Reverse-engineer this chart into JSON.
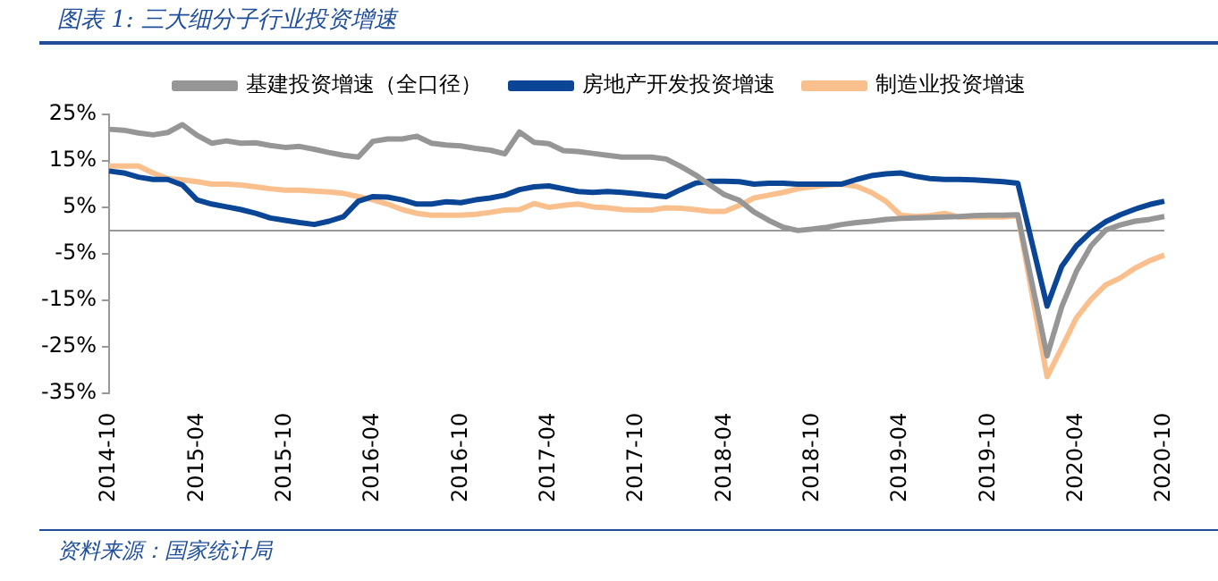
{
  "chart_data": {
    "type": "line",
    "title": "图表 1:  三大细分子行业投资增速",
    "annotations": [
      "资料来源：国家统计局"
    ],
    "categories": [
      "2014-10",
      null,
      null,
      null,
      null,
      null,
      "2015-04",
      null,
      null,
      null,
      null,
      null,
      "2015-10",
      null,
      null,
      null,
      null,
      null,
      "2016-04",
      null,
      null,
      null,
      null,
      null,
      "2016-10",
      null,
      null,
      null,
      null,
      null,
      "2017-04",
      null,
      null,
      null,
      null,
      null,
      "2017-10",
      null,
      null,
      null,
      null,
      null,
      "2018-04",
      null,
      null,
      null,
      null,
      null,
      "2018-10",
      null,
      null,
      null,
      null,
      null,
      "2019-04",
      null,
      null,
      null,
      null,
      null,
      "2019-10",
      null,
      null,
      null,
      null,
      null,
      "2020-04",
      null,
      null,
      null,
      null,
      null,
      "2020-10"
    ],
    "series": [
      {
        "name": "基建投资增速（全口径）",
        "color": "#969696",
        "values": [
          21.8,
          21.6,
          21.0,
          20.6,
          21.1,
          22.8,
          20.5,
          18.8,
          19.3,
          18.8,
          18.9,
          18.3,
          17.9,
          18.1,
          17.5,
          16.8,
          16.2,
          15.8,
          19.2,
          19.7,
          19.7,
          20.3,
          18.8,
          18.4,
          18.2,
          17.7,
          17.3,
          16.5,
          21.2,
          19.0,
          18.7,
          17.2,
          17.0,
          16.6,
          16.2,
          15.8,
          15.8,
          15.8,
          15.4,
          13.8,
          12.0,
          9.8,
          7.7,
          6.5,
          4.0,
          2.2,
          0.7,
          0.0,
          0.3,
          0.7,
          1.3,
          1.7,
          2.0,
          2.4,
          2.6,
          2.7,
          2.8,
          2.9,
          3.0,
          3.2,
          3.3,
          3.3,
          3.4,
          null,
          -27.0,
          -16.4,
          -8.8,
          -3.3,
          0.1,
          1.2,
          2.0,
          2.4,
          3.0
        ]
      },
      {
        "name": "房地产开发投资增速",
        "color": "#0a4596",
        "values": [
          12.8,
          12.4,
          11.5,
          11.0,
          11.0,
          9.8,
          6.6,
          5.7,
          5.1,
          4.5,
          3.7,
          2.7,
          2.2,
          1.7,
          1.3,
          2.0,
          3.0,
          6.3,
          7.3,
          7.2,
          6.6,
          5.7,
          5.7,
          6.2,
          6.0,
          6.6,
          7.0,
          7.6,
          8.8,
          9.4,
          9.6,
          9.0,
          8.4,
          8.2,
          8.4,
          8.2,
          7.9,
          7.6,
          7.3,
          8.8,
          10.2,
          10.6,
          10.6,
          10.5,
          10.0,
          10.2,
          10.2,
          10.0,
          10.0,
          10.0,
          10.0,
          11.0,
          11.8,
          12.2,
          12.4,
          11.7,
          11.2,
          11.0,
          11.0,
          10.9,
          10.7,
          10.5,
          10.2,
          null,
          -16.3,
          -7.7,
          -3.3,
          -0.3,
          1.9,
          3.4,
          4.6,
          5.6,
          6.3
        ]
      },
      {
        "name": "制造业投资增速",
        "color": "#f9c08e",
        "values": [
          13.9,
          13.9,
          13.9,
          12.4,
          11.2,
          10.9,
          10.5,
          10.0,
          10.0,
          9.8,
          9.4,
          9.0,
          8.7,
          8.7,
          8.5,
          8.3,
          8.0,
          7.3,
          6.6,
          5.7,
          4.5,
          3.7,
          3.3,
          3.3,
          3.3,
          3.5,
          3.9,
          4.4,
          4.5,
          5.8,
          5.0,
          5.4,
          5.7,
          5.1,
          4.9,
          4.5,
          4.4,
          4.4,
          4.9,
          4.8,
          4.5,
          4.1,
          4.1,
          5.4,
          7.0,
          7.6,
          8.2,
          9.0,
          9.4,
          9.8,
          10.0,
          9.5,
          8.2,
          6.3,
          3.3,
          3.0,
          3.2,
          3.7,
          2.9,
          2.9,
          2.9,
          2.9,
          3.2,
          null,
          -31.5,
          -25.2,
          -18.8,
          -14.8,
          -11.7,
          -10.2,
          -8.1,
          -6.5,
          -5.3
        ]
      }
    ],
    "ylim": [
      -35,
      25
    ],
    "yticks": [
      {
        "value": -35,
        "label": "-35%"
      },
      {
        "value": -25,
        "label": "-25%"
      },
      {
        "value": -15,
        "label": "-15%"
      },
      {
        "value": -5,
        "label": "-5%"
      },
      {
        "value": 5,
        "label": "5%"
      },
      {
        "value": 15,
        "label": "15%"
      },
      {
        "value": 25,
        "label": "25%"
      }
    ],
    "legend": "top",
    "grid": false
  }
}
